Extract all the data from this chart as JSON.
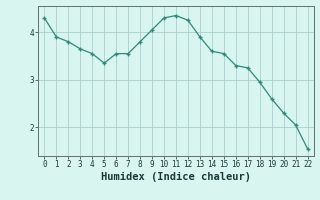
{
  "x": [
    0,
    1,
    2,
    3,
    4,
    5,
    6,
    7,
    8,
    9,
    10,
    11,
    12,
    13,
    14,
    15,
    16,
    17,
    18,
    19,
    20,
    21,
    22
  ],
  "y": [
    4.3,
    3.9,
    3.8,
    3.65,
    3.55,
    3.35,
    3.55,
    3.55,
    3.8,
    4.05,
    4.3,
    4.35,
    4.25,
    3.9,
    3.6,
    3.55,
    3.3,
    3.25,
    2.95,
    2.6,
    2.3,
    2.05,
    1.55
  ],
  "xlabel": "Humidex (Indice chaleur)",
  "line_color": "#2e8b7a",
  "marker": "+",
  "bg_color": "#d8f5f0",
  "grid_color": "#aacfcf",
  "axis_color": "#607070",
  "label_color": "#1a3a3a",
  "ylim": [
    1.4,
    4.55
  ],
  "xlim": [
    -0.5,
    22.5
  ],
  "yticks": [
    2,
    3,
    4
  ],
  "xticks": [
    0,
    1,
    2,
    3,
    4,
    5,
    6,
    7,
    8,
    9,
    10,
    11,
    12,
    13,
    14,
    15,
    16,
    17,
    18,
    19,
    20,
    21,
    22
  ],
  "tick_fontsize": 5.5,
  "xlabel_fontsize": 7.5
}
